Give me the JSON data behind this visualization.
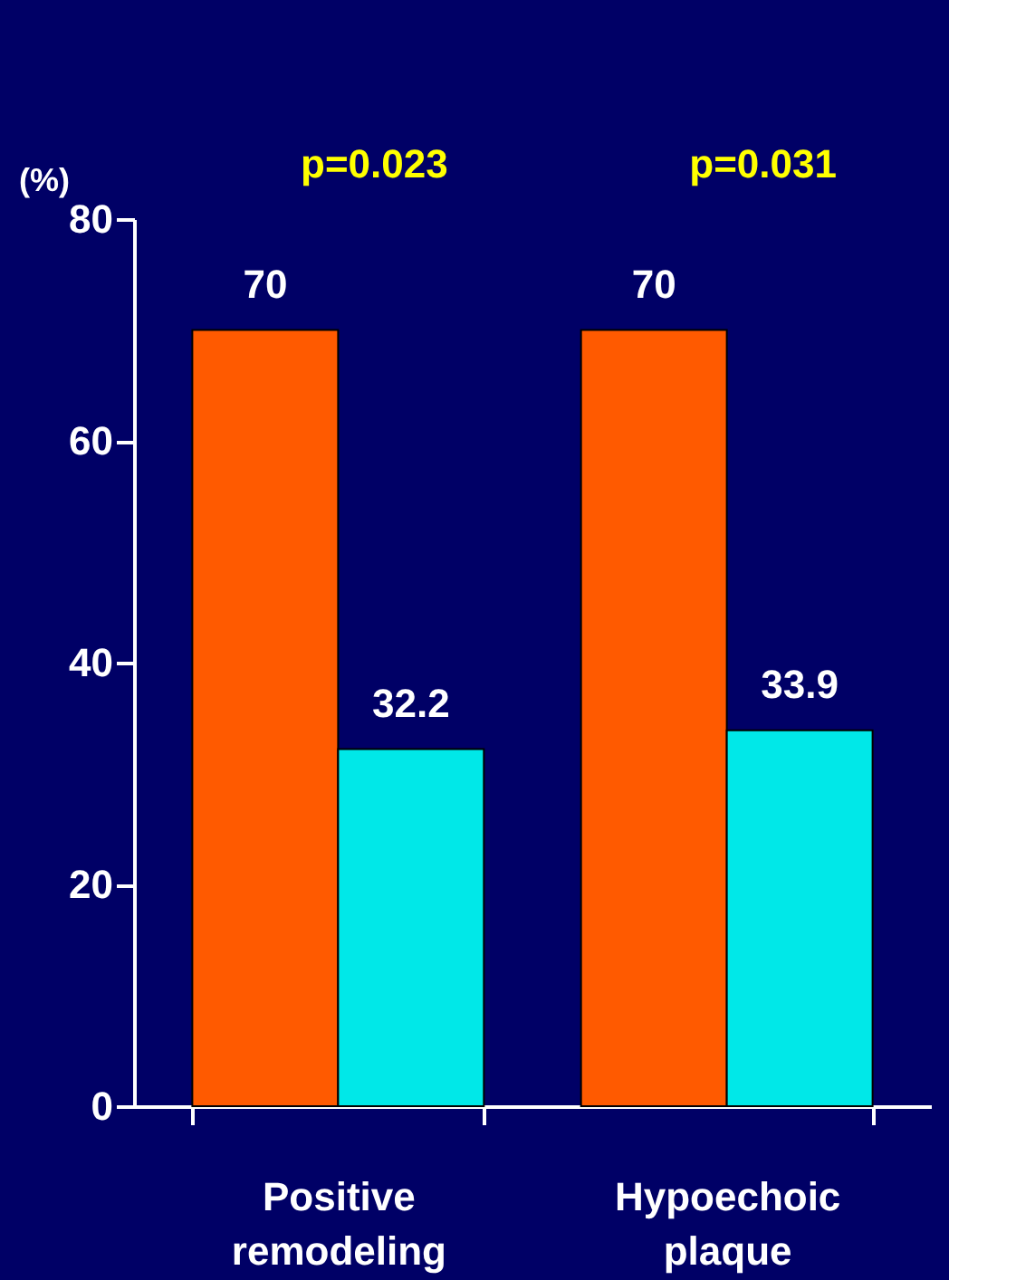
{
  "chart_data": {
    "type": "bar",
    "categories": [
      "Positive remodeling",
      "Hypoechoic plaque"
    ],
    "series": [
      {
        "color": "#ff5a00",
        "values": [
          70,
          70
        ]
      },
      {
        "color": "#00e8e8",
        "values": [
          32.2,
          33.9
        ]
      }
    ],
    "ylabel": "(%)",
    "ylim": [
      0,
      80
    ],
    "yticks": [
      0,
      20,
      40,
      60,
      80
    ],
    "data_labels": true,
    "grid": false,
    "legend": false,
    "annotations": [
      "p=0.023",
      "p=0.031"
    ]
  }
}
